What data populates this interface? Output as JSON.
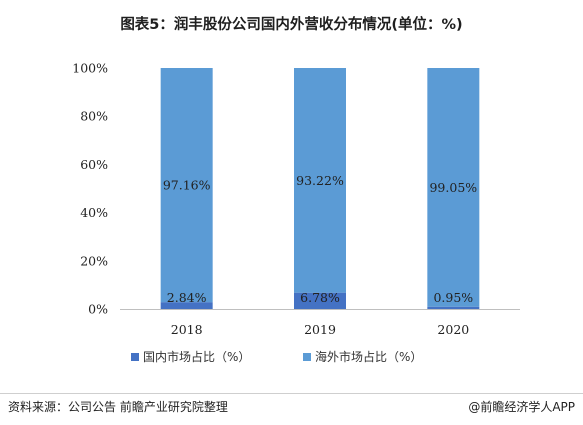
{
  "title": "图表5：润丰股份公司国内外营收分布情况(单位：%)",
  "source": "资料来源：公司公告 前瞻产业研究院整理",
  "brand": "@前瞻经济学人APP",
  "chart_data": {
    "type": "bar",
    "stacked": true,
    "categories": [
      "2018",
      "2019",
      "2020"
    ],
    "series": [
      {
        "name": "国内市场占比（%）",
        "values": [
          2.84,
          6.78,
          0.95
        ],
        "labels": [
          "2.84%",
          "6.78%",
          "0.95%"
        ],
        "color": "#4472c4"
      },
      {
        "name": "海外市场占比（%）",
        "values": [
          97.16,
          93.22,
          99.05
        ],
        "labels": [
          "97.16%",
          "93.22%",
          "99.05%"
        ],
        "color": "#5b9bd5"
      }
    ],
    "ylim": [
      0,
      100
    ],
    "yticks": [
      "0%",
      "20%",
      "40%",
      "60%",
      "80%",
      "100%"
    ],
    "grid": false,
    "legend": "bottom"
  }
}
